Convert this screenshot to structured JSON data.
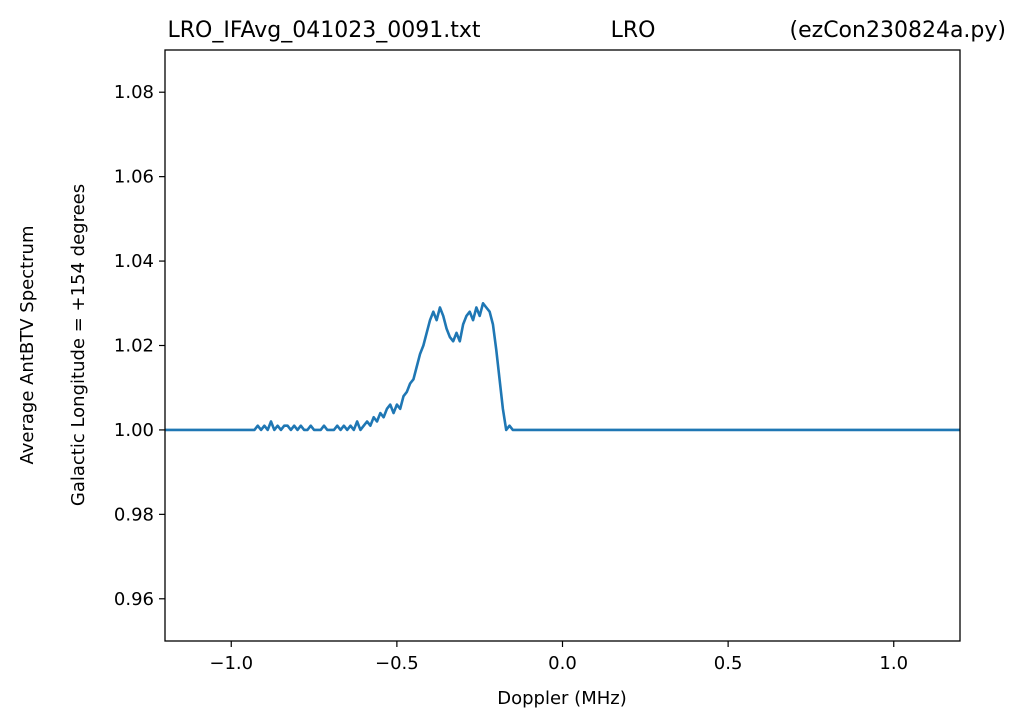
{
  "window": {
    "title_left": "LRO_IFAvg_041023_0091.txt",
    "title_center": "LRO",
    "title_right": "(ezCon230824a.py)"
  },
  "colors": {
    "series": "#1f77b4",
    "axes": "#000000",
    "background": "#ffffff"
  },
  "chart_data": {
    "type": "line",
    "xlabel": "Doppler (MHz)",
    "ylabel_line1": "Average AntBTV Spectrum",
    "ylabel_line2": "Galactic Longitude = +154 degrees",
    "xlim": [
      -1.2,
      1.2
    ],
    "ylim": [
      0.95,
      1.09
    ],
    "xticks": [
      -1.0,
      -0.5,
      0.0,
      0.5,
      1.0
    ],
    "xtick_labels": [
      "−1.0",
      "−0.5",
      "0.0",
      "0.5",
      "1.0"
    ],
    "yticks": [
      0.96,
      0.98,
      1.0,
      1.02,
      1.04,
      1.06,
      1.08
    ],
    "ytick_labels": [
      "0.96",
      "0.98",
      "1.00",
      "1.02",
      "1.04",
      "1.06",
      "1.08"
    ],
    "grid": false,
    "series": [
      {
        "x": [
          -1.2,
          -0.93,
          -0.92,
          -0.91,
          -0.9,
          -0.89,
          -0.88,
          -0.87,
          -0.86,
          -0.85,
          -0.84,
          -0.83,
          -0.82,
          -0.81,
          -0.8,
          -0.79,
          -0.78,
          -0.77,
          -0.76,
          -0.75,
          -0.74,
          -0.73,
          -0.72,
          -0.71,
          -0.7,
          -0.69,
          -0.68,
          -0.67,
          -0.66,
          -0.65,
          -0.64,
          -0.63,
          -0.62,
          -0.61,
          -0.6,
          -0.59,
          -0.58,
          -0.57,
          -0.56,
          -0.55,
          -0.54,
          -0.53,
          -0.52,
          -0.51,
          -0.5,
          -0.49,
          -0.48,
          -0.47,
          -0.46,
          -0.45,
          -0.44,
          -0.43,
          -0.42,
          -0.41,
          -0.4,
          -0.39,
          -0.38,
          -0.37,
          -0.36,
          -0.35,
          -0.34,
          -0.33,
          -0.32,
          -0.31,
          -0.3,
          -0.29,
          -0.28,
          -0.27,
          -0.26,
          -0.25,
          -0.24,
          -0.23,
          -0.22,
          -0.21,
          -0.2,
          -0.19,
          -0.18,
          -0.17,
          -0.16,
          -0.15,
          -0.14,
          -0.13,
          -0.12,
          -0.11,
          -0.1,
          -0.09,
          -0.08,
          1.2
        ],
        "y": [
          1.0,
          1.0,
          1.001,
          1.0,
          1.001,
          1.0,
          1.002,
          1.0,
          1.001,
          1.0,
          1.001,
          1.001,
          1.0,
          1.001,
          1.0,
          1.001,
          1.0,
          1.0,
          1.001,
          1.0,
          1.0,
          1.0,
          1.001,
          1.0,
          1.0,
          1.0,
          1.001,
          1.0,
          1.001,
          1.0,
          1.001,
          1.0,
          1.002,
          1.0,
          1.001,
          1.002,
          1.001,
          1.003,
          1.002,
          1.004,
          1.003,
          1.005,
          1.006,
          1.004,
          1.006,
          1.005,
          1.008,
          1.009,
          1.011,
          1.012,
          1.015,
          1.018,
          1.02,
          1.023,
          1.026,
          1.028,
          1.026,
          1.029,
          1.027,
          1.024,
          1.022,
          1.021,
          1.023,
          1.021,
          1.025,
          1.027,
          1.028,
          1.026,
          1.029,
          1.027,
          1.03,
          1.029,
          1.028,
          1.025,
          1.019,
          1.012,
          1.005,
          1.0,
          1.001,
          1.0,
          1.0,
          1.0,
          1.0,
          1.0,
          1.0,
          1.0,
          1.0,
          1.0
        ]
      }
    ]
  }
}
